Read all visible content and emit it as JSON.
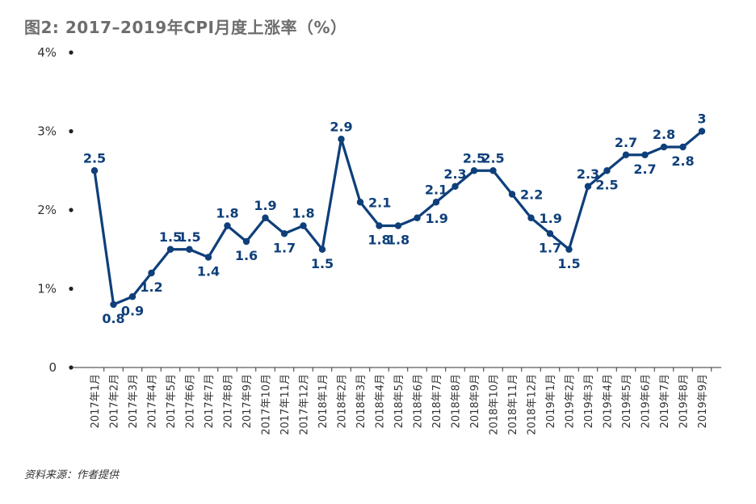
{
  "title": "图2: 2017–2019年CPI月度上涨率（%）",
  "source": "资料来源：作者提供",
  "colors": {
    "series": "#0e3f7a",
    "axis": "#333333",
    "title": "#6d6d6d"
  },
  "chart_data": {
    "type": "line",
    "title": "图2: 2017–2019年CPI月度上涨率（%）",
    "xlabel": "",
    "ylabel": "",
    "ylim": [
      0,
      4
    ],
    "y_ticks": [
      0,
      1,
      2,
      3,
      4
    ],
    "y_tick_labels": [
      "0",
      "1%",
      "2%",
      "3%",
      "4%"
    ],
    "grid": false,
    "legend": "none",
    "categories": [
      "2017年1月",
      "2017年2月",
      "2017年3月",
      "2017年4月",
      "2017年5月",
      "2017年6月",
      "2017年7月",
      "2017年8月",
      "2017年9月",
      "2017年10月",
      "2017年11月",
      "2017年12月",
      "2018年1月",
      "2018年2月",
      "2018年3月",
      "2018年4月",
      "2018年5月",
      "2018年6月",
      "2018年7月",
      "2018年8月",
      "2018年9月",
      "2018年10月",
      "2018年11月",
      "2018年12月",
      "2019年1月",
      "2019年2月",
      "2019年3月",
      "2019年4月",
      "2019年5月",
      "2019年6月",
      "2019年7月",
      "2019年8月",
      "2019年9月"
    ],
    "values": [
      2.5,
      0.8,
      0.9,
      1.2,
      1.5,
      1.5,
      1.4,
      1.8,
      1.6,
      1.9,
      1.7,
      1.8,
      1.5,
      2.9,
      2.1,
      1.8,
      1.8,
      1.9,
      2.1,
      2.3,
      2.5,
      2.5,
      2.2,
      1.9,
      1.7,
      1.5,
      2.3,
      2.5,
      2.7,
      2.7,
      2.8,
      2.8,
      3
    ],
    "label_position": [
      "above",
      "below",
      "below",
      "below",
      "above",
      "above",
      "below",
      "above",
      "below",
      "above",
      "below",
      "above",
      "below",
      "above",
      "right",
      "below",
      "below",
      "right",
      "above",
      "above",
      "above",
      "above",
      "right",
      "right",
      "below",
      "below",
      "above",
      "below",
      "above",
      "below",
      "above",
      "below",
      "above"
    ]
  }
}
